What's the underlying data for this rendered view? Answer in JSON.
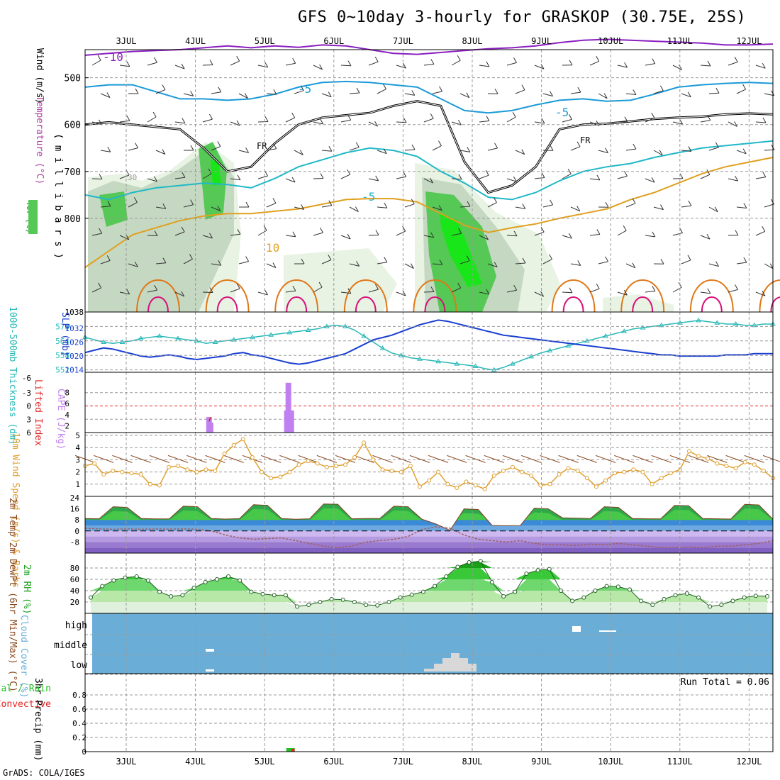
{
  "title": "GFS 0~10day 3-hourly for GRASKOP (30.75E, 25S)",
  "credit": "GrADS: COLA/IGES",
  "colors": {
    "frame": "#000000",
    "grid": "#9a9a9a",
    "temp_cold": "#8a1fc0",
    "temp_cool": "#1a9ad8",
    "temp_mid": "#20b8c8",
    "temp_warm": "#e0a020",
    "temp_hot": "#e07818",
    "temp_vhot": "#d8107a",
    "freezing": "#000000",
    "rh_light": "#e8f3e4",
    "rh_mid": "#c5d8c2",
    "rh_dark": "#9fbb9f",
    "rh_green": "#55c855",
    "rh_bright": "#19e619",
    "thickness": "#28b8b8",
    "slp": "#1a3fd0",
    "lifted_index": "#e02020",
    "cape": "#c080f0",
    "wind_speed": "#e0a030",
    "wind_barb": "#8a4a20",
    "cloud_bg": "#6aaed8",
    "cloud_fill": "#d8d8d8",
    "precip_total": "#22c022",
    "precip_conv": "#e02020"
  },
  "chart_data": [
    {
      "panel": "upper-air",
      "type": "contour",
      "ylabel_parts": [
        "RH (%)",
        "Temperature (°C)",
        "Wind (m/s)"
      ],
      "ylabel2": "( m i l l i b a r s )",
      "yticks": [
        500,
        600,
        700,
        800
      ],
      "ylim": [
        1000,
        440
      ],
      "x_categories": [
        "3JUL",
        "4JUL",
        "5JUL",
        "6JUL",
        "7JUL",
        "8JUL",
        "9JUL",
        "10JUL",
        "11JUL",
        "12JUL"
      ],
      "contour_labels": [
        "-10",
        "-5",
        "-5",
        "FR",
        "FR",
        "-5",
        "10",
        "30"
      ],
      "temp_minus10_hpa": [
        452,
        448,
        444,
        442,
        440,
        436,
        432,
        436,
        432,
        435,
        430,
        432,
        440,
        448,
        450,
        446,
        442,
        438,
        436,
        432,
        425,
        420,
        418,
        420,
        422,
        424,
        426,
        430,
        430,
        428
      ],
      "temp_minus5_hpa": [
        520,
        515,
        515,
        530,
        545,
        545,
        548,
        545,
        535,
        520,
        510,
        508,
        510,
        515,
        520,
        545,
        570,
        575,
        570,
        558,
        548,
        545,
        550,
        548,
        535,
        520,
        515,
        512,
        510,
        512
      ],
      "freezing_level_hpa": [
        600,
        595,
        600,
        605,
        610,
        650,
        700,
        690,
        640,
        600,
        585,
        580,
        575,
        560,
        550,
        560,
        680,
        745,
        730,
        690,
        610,
        600,
        598,
        593,
        588,
        585,
        583,
        578,
        576,
        578
      ],
      "temp_minus5_mid_hpa": [
        750,
        760,
        745,
        735,
        730,
        725,
        728,
        735,
        715,
        690,
        675,
        660,
        650,
        655,
        668,
        700,
        725,
        755,
        760,
        745,
        720,
        700,
        690,
        683,
        670,
        660,
        650,
        645,
        640,
        635
      ],
      "temp_10_hpa": [
        905,
        870,
        835,
        820,
        805,
        795,
        790,
        790,
        785,
        780,
        770,
        760,
        758,
        758,
        765,
        790,
        815,
        830,
        820,
        812,
        800,
        790,
        780,
        760,
        745,
        725,
        705,
        690,
        680,
        670
      ],
      "rh_humid_days_index": [
        0,
        1,
        2,
        5,
        6,
        7
      ]
    },
    {
      "panel": "thickness-slp",
      "type": "line",
      "ylabel_left": "1000-500mb Thickness (dm)",
      "ylabel_right": "SLP (mb)",
      "left_ticks": [
        552,
        558,
        564,
        570
      ],
      "right_ticks": [
        1014,
        1020,
        1026,
        1032
      ],
      "top_label": "1038",
      "series": [
        {
          "name": "thickness",
          "axis": "left",
          "ylim": [
            551,
            576
          ],
          "values": [
            565.5,
            564.5,
            563.5,
            563,
            563.5,
            564,
            565,
            565.5,
            566,
            565.5,
            565,
            564.5,
            564,
            563,
            563.5,
            564,
            564.5,
            565,
            565.5,
            566,
            566.5,
            567,
            567.5,
            568,
            568.5,
            569,
            570,
            570.5,
            570,
            568.5,
            566,
            563.5,
            561,
            559,
            558,
            557,
            556.5,
            556,
            555.5,
            555,
            554.5,
            554,
            553.5,
            552.5,
            552,
            553,
            554.5,
            556,
            557.5,
            559,
            560,
            561,
            562,
            563,
            564,
            565,
            566,
            567,
            568,
            569,
            569.5,
            570,
            570.5,
            571,
            571.5,
            572,
            572.5,
            572,
            571.5,
            571,
            571,
            570.5,
            570.5,
            571,
            571
          ]
        },
        {
          "name": "slp",
          "axis": "right",
          "ylim": [
            1013,
            1039
          ],
          "values": [
            1021.5,
            1022.5,
            1023.5,
            1023,
            1022,
            1021,
            1020,
            1019.5,
            1020,
            1020.5,
            1020,
            1019,
            1018.5,
            1019,
            1019.5,
            1020,
            1021,
            1021.5,
            1020.5,
            1020,
            1019,
            1018,
            1017,
            1016.5,
            1017,
            1018,
            1019,
            1020,
            1021,
            1023,
            1025,
            1027,
            1028,
            1029,
            1030.5,
            1032,
            1033.5,
            1034.5,
            1035.5,
            1035,
            1034,
            1033,
            1032,
            1031,
            1030,
            1029,
            1028.5,
            1028,
            1027.5,
            1027,
            1026.5,
            1026,
            1025.5,
            1025,
            1024.5,
            1024,
            1023.5,
            1023,
            1022.5,
            1022,
            1021.5,
            1021,
            1020.5,
            1020.5,
            1020,
            1020,
            1020,
            1020,
            1020,
            1020.5,
            1020.5,
            1020.5,
            1021,
            1021,
            1021
          ]
        }
      ]
    },
    {
      "panel": "lifted-cape",
      "type": "bar",
      "ylabel_left": "Lifted Index",
      "ylabel_right": "CAPE (J/kg)",
      "left_ticks": [
        "-3",
        "0",
        "3",
        "6"
      ],
      "right_ticks": [
        "8",
        "6",
        "4",
        "2"
      ],
      "top_tick": "-6",
      "cape_bars": [
        {
          "x": 14.33,
          "v": 2.8
        },
        {
          "x": 14.5,
          "v": 1.8
        },
        {
          "x": 23.33,
          "v": 4
        },
        {
          "x": 23.5,
          "v": 9
        },
        {
          "x": 23.67,
          "v": 1.5
        },
        {
          "x": 23.83,
          "v": 4
        }
      ],
      "lifted_index_points": [
        {
          "x": 14.33,
          "v": 3.5
        },
        {
          "x": 14.5,
          "v": 2.5
        }
      ],
      "zero_line": 0
    },
    {
      "panel": "wind10m",
      "type": "line",
      "ylabel": "10m Wind Speed (m/s) & Barbs",
      "ylim": [
        0,
        5
      ],
      "ticks": [
        1,
        2,
        3,
        4,
        5
      ],
      "speed": [
        2.5,
        2.7,
        1.8,
        2.1,
        2.0,
        1.9,
        1.8,
        1.0,
        0.9,
        2.4,
        2.5,
        2.2,
        2.0,
        2.2,
        2.1,
        3.5,
        4.2,
        4.7,
        3.2,
        2.0,
        1.5,
        1.6,
        2.0,
        2.6,
        2.9,
        2.7,
        2.4,
        2.5,
        2.6,
        3.2,
        4.4,
        3.0,
        2.2,
        2.1,
        2.0,
        2.5,
        0.8,
        1.3,
        2.0,
        1.0,
        0.7,
        1.2,
        0.9,
        0.6,
        1.7,
        2.1,
        2.4,
        2.0,
        1.7,
        0.9,
        1.0,
        1.8,
        2.3,
        2.1,
        1.5,
        0.8,
        1.3,
        1.9,
        2.0,
        2.2,
        2.0,
        1.0,
        1.5,
        1.9,
        2.2,
        3.7,
        3.3,
        3.1,
        2.7,
        2.5,
        2.3,
        2.8,
        2.6,
        2.1,
        1.5
      ]
    },
    {
      "panel": "temp2m",
      "type": "area",
      "ylabel": "2m Temp 2m DewPt (6hr Min/Max) (°C)",
      "ylim": [
        -16,
        25
      ],
      "ticks": [
        24,
        16,
        8,
        0,
        -8
      ],
      "temp_max": [
        9,
        8.8,
        17.5,
        17,
        9,
        8.7,
        8.8,
        18,
        17.5,
        9,
        8.6,
        8.9,
        19,
        18.5,
        9,
        8.5,
        8.8,
        19.5,
        19.3,
        8.8,
        9,
        9,
        18,
        17.5,
        8.5,
        5,
        0.5,
        16,
        15.5,
        4,
        3.8,
        3.9,
        16.5,
        16,
        9.5,
        9.2,
        9,
        17.5,
        17,
        9,
        8.8,
        8.7,
        18.5,
        18.2,
        9,
        8.8,
        8.6,
        19.2,
        18.8,
        8.5
      ],
      "dewpt": [
        2,
        1.5,
        1.2,
        1.5,
        1.2,
        1.4,
        1.3,
        1.5,
        1.2,
        0,
        -3,
        -5,
        -6,
        -5.5,
        -5,
        -7,
        -9,
        -11,
        -12,
        -11,
        -8,
        -7,
        -6,
        -4,
        1,
        3,
        2,
        -3,
        -6,
        -7,
        -8,
        -7,
        -9,
        -10,
        -10,
        -10.5,
        -9.5,
        -10,
        -9,
        -10,
        -11,
        -12,
        -12,
        -11.5,
        -12,
        -11,
        -11,
        -10,
        -9,
        -7
      ]
    },
    {
      "panel": "rh2m",
      "type": "area",
      "ylabel": "2m RH (%)",
      "ylim": [
        0,
        100
      ],
      "ticks": [
        20,
        40,
        60,
        80
      ],
      "values": [
        28,
        48,
        58,
        63,
        65,
        58,
        38,
        30,
        32,
        45,
        55,
        60,
        65,
        58,
        38,
        34,
        32,
        32,
        12,
        15,
        20,
        25,
        24,
        20,
        15,
        14,
        20,
        28,
        33,
        38,
        48,
        65,
        82,
        90,
        92,
        55,
        30,
        38,
        70,
        76,
        78,
        40,
        22,
        28,
        40,
        48,
        47,
        42,
        22,
        15,
        25,
        32,
        35,
        28,
        12,
        15,
        22,
        28,
        31,
        30
      ]
    },
    {
      "panel": "cloud",
      "type": "heatmap",
      "ylabel": "Cloud Cover (%)",
      "levels": [
        "high",
        "middle",
        "low"
      ],
      "notes": [
        "high cloud ~9JUL evening",
        "low cloud 7JUL-8JUL"
      ]
    },
    {
      "panel": "precip",
      "type": "bar",
      "ylabel": "3hr Precip (mm)",
      "legend": [
        "Total / Rain",
        "Convective"
      ],
      "ylim": [
        0,
        1.0
      ],
      "ticks": [
        "0",
        "0.2",
        "0.4",
        "0.6",
        "0.8"
      ],
      "run_total": "Run Total = 0.06",
      "bars": [
        {
          "x": 23.75,
          "total": 0.05,
          "conv": 0
        },
        {
          "x": 24.05,
          "total": 0,
          "conv": 0.04
        }
      ],
      "x_categories": [
        "3JUL",
        "4JUL",
        "5JUL",
        "6JUL",
        "7JUL",
        "8JUL",
        "9JUL",
        "10JUL",
        "11JUL",
        "12JUL"
      ]
    }
  ]
}
